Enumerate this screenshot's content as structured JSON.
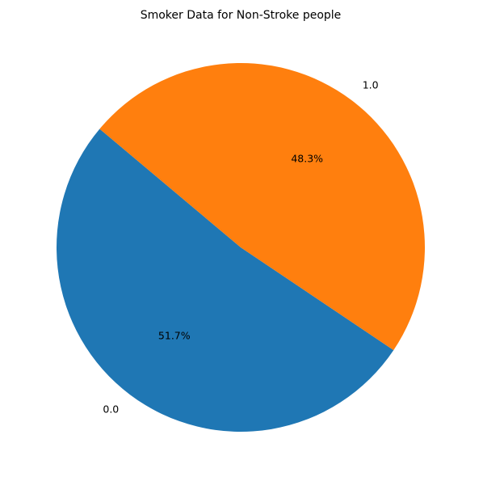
{
  "chart_data": {
    "type": "pie",
    "title": "Smoker Data for Non-Stroke people",
    "categories": [
      "0.0",
      "1.0"
    ],
    "values": [
      51.7,
      48.3
    ],
    "percent_labels": [
      "51.7%",
      "48.3%"
    ],
    "colors": [
      "#1f77b4",
      "#ff7f0e"
    ],
    "start_angle_deg": 140,
    "direction": "counterclockwise"
  }
}
